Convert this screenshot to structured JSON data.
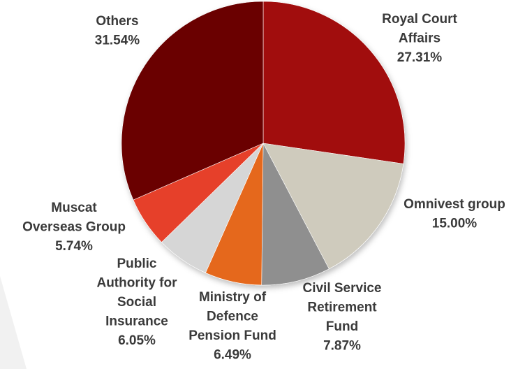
{
  "chart_data": {
    "type": "pie",
    "slices": [
      {
        "label": [
          "Royal Court",
          "Affairs"
        ],
        "pct_text": "27.31%",
        "value": 27.31,
        "color": "#a10d0d"
      },
      {
        "label": [
          "Omnivest group"
        ],
        "pct_text": "15.00%",
        "value": 15.0,
        "color": "#cfcbbd"
      },
      {
        "label": [
          "Civil Service",
          "Retirement",
          "Fund"
        ],
        "pct_text": "7.87%",
        "value": 7.87,
        "color": "#8f8f8f"
      },
      {
        "label": [
          "Ministry of",
          "Defence",
          "Pension Fund"
        ],
        "pct_text": "6.49%",
        "value": 6.49,
        "color": "#e5671a"
      },
      {
        "label": [
          "Public",
          "Authority for",
          "Social",
          "Insurance"
        ],
        "pct_text": "6.05%",
        "value": 6.05,
        "color": "#d6d6d6"
      },
      {
        "label": [
          "Muscat",
          "Overseas Group"
        ],
        "pct_text": "5.74%",
        "value": 5.74,
        "color": "#e6402a"
      },
      {
        "label": [
          "Others"
        ],
        "pct_text": "31.54%",
        "value": 31.54,
        "color": "#6b0606"
      }
    ]
  }
}
